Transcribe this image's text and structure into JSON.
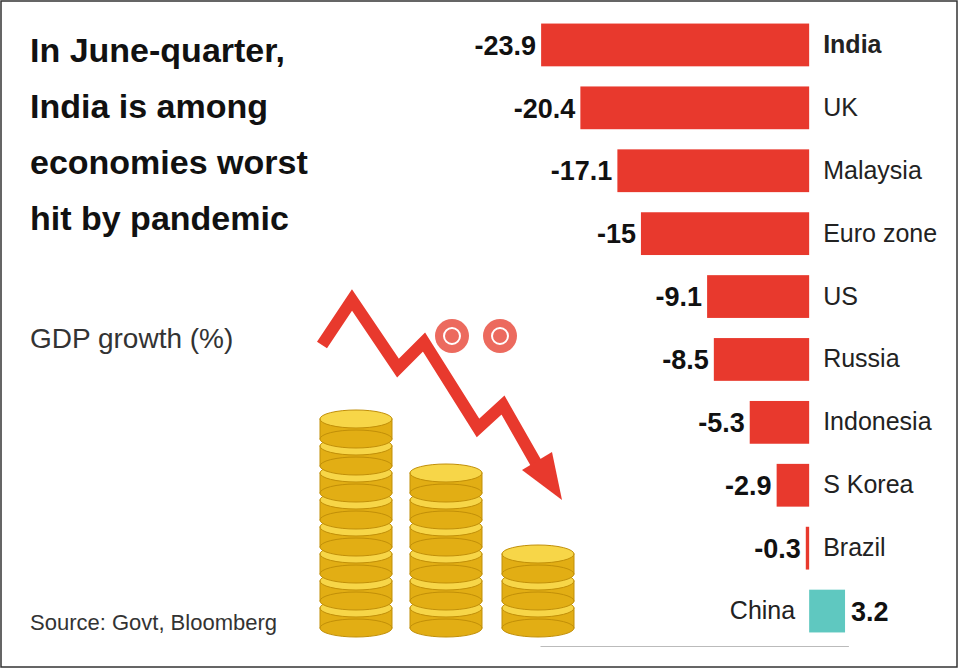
{
  "chart_data": {
    "type": "bar",
    "orientation": "horizontal",
    "title": "In June-quarter, India is among economies worst hit by pandemic",
    "subtitle": "GDP growth (%)",
    "annotations": [
      "Source: Govt, Bloomberg"
    ],
    "categories": [
      "India",
      "UK",
      "Malaysia",
      "Euro zone",
      "US",
      "Russia",
      "Indonesia",
      "S Korea",
      "Brazil",
      "China"
    ],
    "values": [
      -23.9,
      -20.4,
      -17.1,
      -15,
      -9.1,
      -8.5,
      -5.3,
      -2.9,
      -0.3,
      3.2
    ],
    "colors": [
      "#e8392d",
      "#e8392d",
      "#e8392d",
      "#e8392d",
      "#e8392d",
      "#e8392d",
      "#e8392d",
      "#e8392d",
      "#e8392d",
      "#5fc8c0"
    ],
    "xlim": [
      -24,
      3.5
    ],
    "data_labels": true,
    "tick_labels": "y",
    "grid": false
  }
}
